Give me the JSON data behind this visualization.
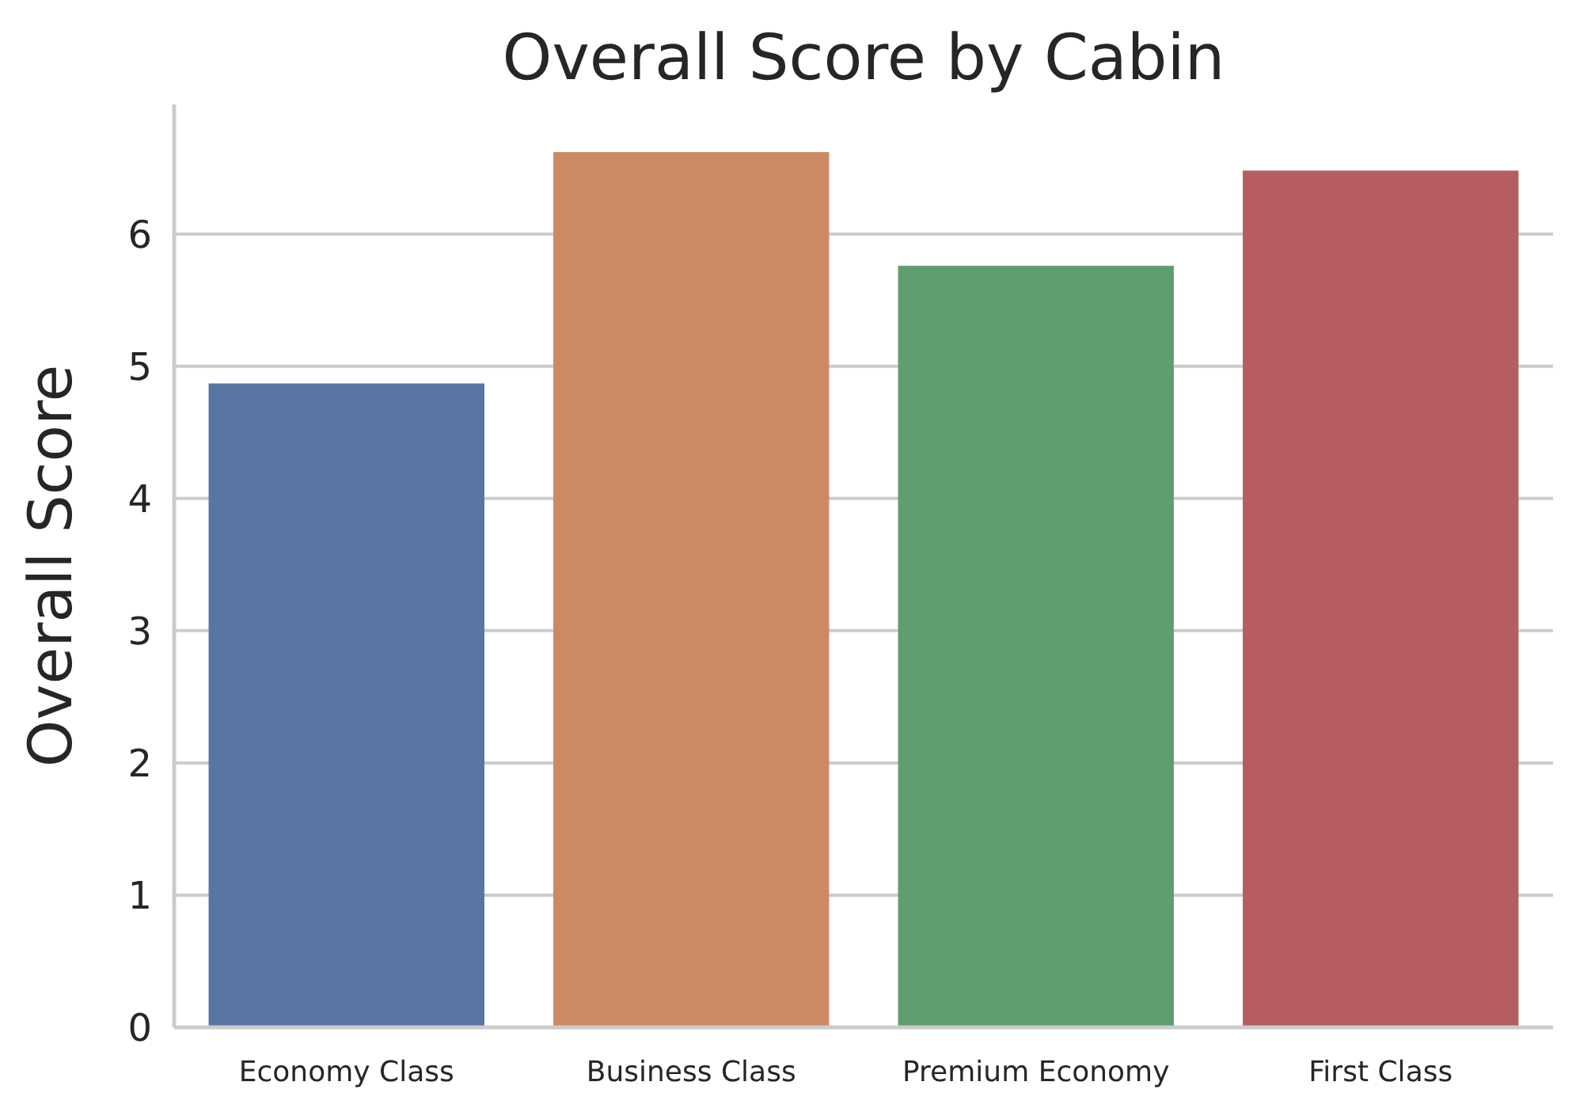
{
  "chart_data": {
    "type": "bar",
    "title": "Overall Score by Cabin",
    "ylabel": "Overall Score",
    "categories": [
      "Economy Class",
      "Business Class",
      "Premium Economy",
      "First Class"
    ],
    "values": [
      4.87,
      6.62,
      5.76,
      6.48
    ],
    "colors": [
      "#5975a4",
      "#cc8963",
      "#5f9e6e",
      "#b55d60"
    ],
    "ylim": [
      0,
      6.98
    ],
    "yticks": [
      0,
      1,
      2,
      3,
      4,
      5,
      6
    ],
    "grid": "y"
  }
}
